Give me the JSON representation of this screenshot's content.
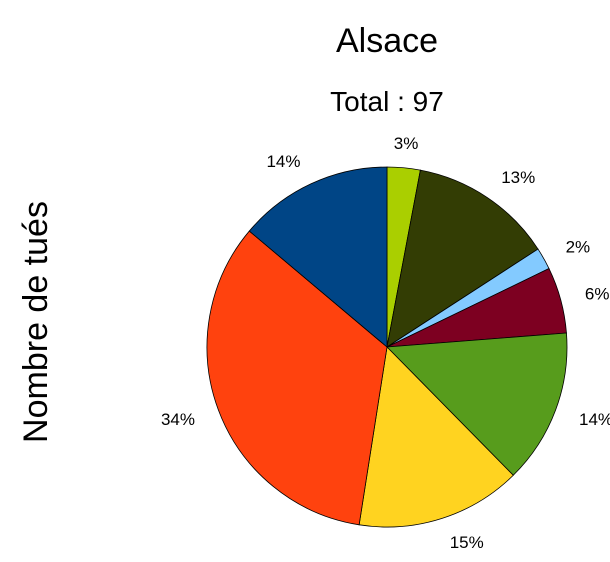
{
  "chart_data": {
    "type": "pie",
    "title": "Alsace",
    "subtitle": "Total : 97",
    "ylabel": "Nombre de tués",
    "start": "top",
    "direction": "clockwise",
    "slices": [
      {
        "label": "3%",
        "value": 3,
        "color": "#aacf00"
      },
      {
        "label": "13%",
        "value": 13,
        "color": "#333d04"
      },
      {
        "label": "2%",
        "value": 2,
        "color": "#83caff"
      },
      {
        "label": "6%",
        "value": 6,
        "color": "#7d0021"
      },
      {
        "label": "14%",
        "value": 14,
        "color": "#579c1c"
      },
      {
        "label": "15%",
        "value": 15,
        "color": "#ffd320"
      },
      {
        "label": "34%",
        "value": 34,
        "color": "#ff420e"
      },
      {
        "label": "14%",
        "value": 14,
        "color": "#004586"
      }
    ]
  }
}
